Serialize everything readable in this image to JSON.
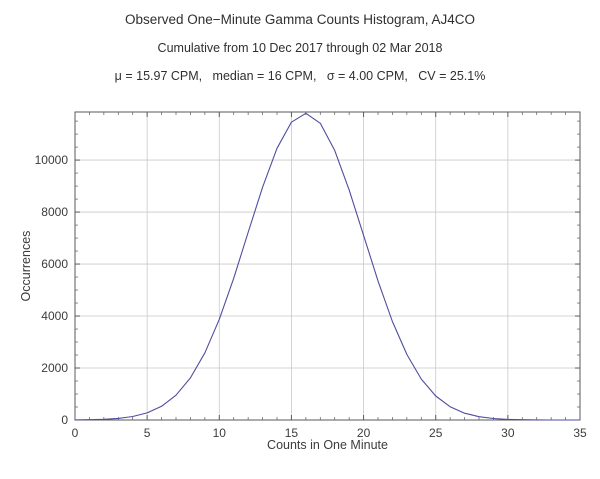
{
  "chart_data": {
    "type": "line",
    "title": "Observed One−Minute Gamma Counts Histogram, AJ4CO",
    "subtitle": "Cumulative from 10 Dec 2017 through 02 Mar 2018",
    "stats_annotation": "μ = 15.97 CPM,   median = 16 CPM,   σ = 4.00 CPM,   CV = 25.1%",
    "xlabel": "Counts in One Minute",
    "ylabel": "Occurrences",
    "xlim": [
      0,
      35
    ],
    "ylim": [
      0,
      11850
    ],
    "xticks": [
      0,
      5,
      10,
      15,
      20,
      25,
      30,
      35
    ],
    "yticks": [
      0,
      2000,
      4000,
      6000,
      8000,
      10000
    ],
    "x_minor_step": 1,
    "y_minor_step": 500,
    "grid": true,
    "legend": "none",
    "line_color": "#4f4d9e",
    "grid_color": "#c9c9c9",
    "frame_color": "#5a5a5a",
    "background_color": "#ffffff",
    "x": [
      0,
      1,
      2,
      3,
      4,
      5,
      6,
      7,
      8,
      9,
      10,
      11,
      12,
      13,
      14,
      15,
      16,
      17,
      18,
      19,
      20,
      21,
      22,
      23,
      24,
      25,
      26,
      27,
      28,
      29,
      30,
      31,
      32,
      33,
      34,
      35
    ],
    "values": [
      4,
      11,
      26,
      61,
      134,
      275,
      528,
      956,
      1621,
      2585,
      3874,
      5453,
      7212,
      8956,
      10452,
      11458,
      11800,
      11415,
      10374,
      8857,
      7104,
      5351,
      3788,
      2519,
      1573,
      923,
      510,
      263,
      128,
      59,
      25,
      10,
      4,
      1,
      0,
      0
    ]
  }
}
